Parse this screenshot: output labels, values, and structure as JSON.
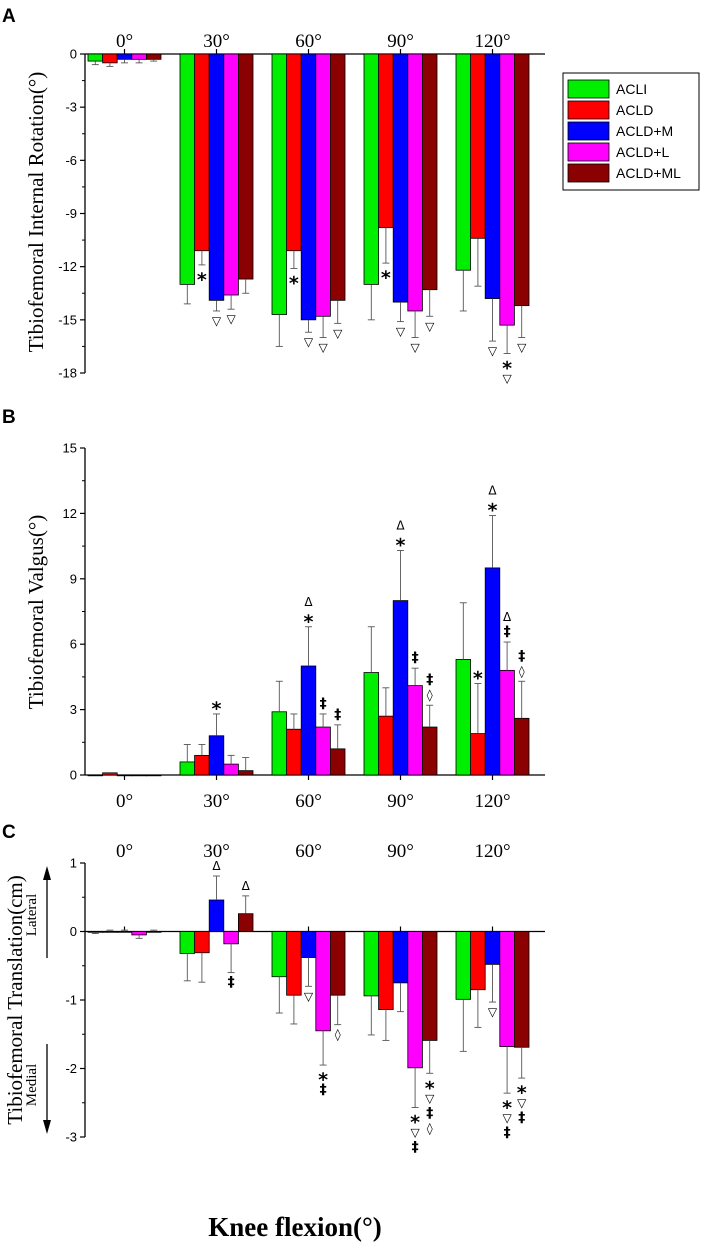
{
  "figure": {
    "x_axis_label": "Knee flexion(°)",
    "legend": [
      "ACLI",
      "ACLD",
      "ACLD+M",
      "ACLD+L",
      "ACLD+ML"
    ],
    "colors": [
      "#00ee00",
      "#ff0000",
      "#0000ff",
      "#ff00ff",
      "#8b0000"
    ]
  },
  "chart_data": [
    {
      "type": "bar",
      "panel": "A",
      "title": "",
      "ylabel": "Tibiofemoral Internal Rotation(°)",
      "xlabel": "Knee flexion(°)",
      "categories": [
        "0°",
        "30°",
        "60°",
        "90°",
        "120°"
      ],
      "category_label_position": "top",
      "ylim": [
        -18,
        0
      ],
      "yticks": [
        -18,
        -15,
        -12,
        -9,
        -6,
        -3,
        0
      ],
      "legend_position": "right",
      "series": [
        {
          "name": "ACLI",
          "color": "#00ee00",
          "values": [
            -0.4,
            -13.0,
            -14.7,
            -13.0,
            -12.2
          ],
          "errors": [
            0.2,
            1.1,
            1.8,
            2.0,
            2.3
          ]
        },
        {
          "name": "ACLD",
          "color": "#ff0000",
          "values": [
            -0.5,
            -11.1,
            -11.1,
            -9.8,
            -10.4
          ],
          "errors": [
            0.2,
            0.8,
            1.0,
            2.0,
            2.7
          ]
        },
        {
          "name": "ACLD+M",
          "color": "#0000ff",
          "values": [
            -0.3,
            -13.9,
            -15.0,
            -14.0,
            -13.8
          ],
          "errors": [
            0.2,
            0.6,
            0.7,
            1.1,
            2.4
          ]
        },
        {
          "name": "ACLD+L",
          "color": "#ff00ff",
          "values": [
            -0.3,
            -13.6,
            -14.8,
            -14.5,
            -15.3
          ],
          "errors": [
            0.2,
            0.8,
            1.2,
            1.5,
            1.6
          ]
        },
        {
          "name": "ACLD+ML",
          "color": "#8b0000",
          "values": [
            -0.3,
            -12.7,
            -13.9,
            -13.3,
            -14.2
          ],
          "errors": [
            0.1,
            0.8,
            1.3,
            1.5,
            1.8
          ]
        }
      ],
      "annotations": [
        {
          "category": 1,
          "series": 1,
          "text": "*"
        },
        {
          "category": 1,
          "series": 2,
          "text": "▽"
        },
        {
          "category": 1,
          "series": 3,
          "text": "▽"
        },
        {
          "category": 2,
          "series": 1,
          "text": "*"
        },
        {
          "category": 2,
          "series": 2,
          "text": "▽"
        },
        {
          "category": 2,
          "series": 3,
          "text": "▽"
        },
        {
          "category": 2,
          "series": 4,
          "text": "▽"
        },
        {
          "category": 3,
          "series": 1,
          "text": "*"
        },
        {
          "category": 3,
          "series": 2,
          "text": "▽"
        },
        {
          "category": 3,
          "series": 3,
          "text": "▽"
        },
        {
          "category": 3,
          "series": 4,
          "text": "▽"
        },
        {
          "category": 4,
          "series": 2,
          "text": "▽"
        },
        {
          "category": 4,
          "series": 3,
          "text": "*"
        },
        {
          "category": 4,
          "series": 3,
          "text": "▽"
        },
        {
          "category": 4,
          "series": 4,
          "text": "▽"
        }
      ]
    },
    {
      "type": "bar",
      "panel": "B",
      "title": "",
      "ylabel": "Tibiofemoral Valgus(°)",
      "xlabel": "Knee flexion(°)",
      "categories": [
        "0°",
        "30°",
        "60°",
        "90°",
        "120°"
      ],
      "category_label_position": "bottom",
      "ylim": [
        0,
        15
      ],
      "yticks": [
        0,
        3,
        6,
        9,
        12,
        15
      ],
      "series": [
        {
          "name": "ACLI",
          "color": "#00ee00",
          "values": [
            0.0,
            0.6,
            2.9,
            4.7,
            5.3
          ],
          "errors": [
            0.0,
            0.8,
            1.4,
            2.1,
            2.6
          ]
        },
        {
          "name": "ACLD",
          "color": "#ff0000",
          "values": [
            0.1,
            0.9,
            2.1,
            2.7,
            1.9
          ],
          "errors": [
            0.0,
            0.5,
            0.7,
            1.3,
            2.3
          ]
        },
        {
          "name": "ACLD+M",
          "color": "#0000ff",
          "values": [
            0.0,
            1.8,
            5.0,
            8.0,
            9.5
          ],
          "errors": [
            0.0,
            1.0,
            1.8,
            2.3,
            2.4
          ]
        },
        {
          "name": "ACLD+L",
          "color": "#ff00ff",
          "values": [
            0.0,
            0.5,
            2.2,
            4.1,
            4.8
          ],
          "errors": [
            0.0,
            0.4,
            0.6,
            0.8,
            1.3
          ]
        },
        {
          "name": "ACLD+ML",
          "color": "#8b0000",
          "values": [
            0.0,
            0.2,
            1.2,
            2.2,
            2.6
          ],
          "errors": [
            0.0,
            0.6,
            1.1,
            1.0,
            1.7
          ]
        }
      ],
      "annotations": [
        {
          "category": 1,
          "series": 2,
          "text": "*"
        },
        {
          "category": 2,
          "series": 2,
          "text": "*"
        },
        {
          "category": 2,
          "series": 2,
          "text": "Δ"
        },
        {
          "category": 2,
          "series": 3,
          "text": "‡"
        },
        {
          "category": 2,
          "series": 4,
          "text": "‡"
        },
        {
          "category": 3,
          "series": 2,
          "text": "*"
        },
        {
          "category": 3,
          "series": 2,
          "text": "Δ"
        },
        {
          "category": 3,
          "series": 3,
          "text": "‡"
        },
        {
          "category": 3,
          "series": 4,
          "text": "◊"
        },
        {
          "category": 3,
          "series": 4,
          "text": "‡"
        },
        {
          "category": 4,
          "series": 1,
          "text": "*"
        },
        {
          "category": 4,
          "series": 2,
          "text": "*"
        },
        {
          "category": 4,
          "series": 2,
          "text": "Δ"
        },
        {
          "category": 4,
          "series": 3,
          "text": "‡"
        },
        {
          "category": 4,
          "series": 3,
          "text": "Δ"
        },
        {
          "category": 4,
          "series": 4,
          "text": "◊"
        },
        {
          "category": 4,
          "series": 4,
          "text": "‡"
        }
      ]
    },
    {
      "type": "bar",
      "panel": "C",
      "title": "",
      "ylabel": "Tibiofemoral Translation(cm)",
      "direction_labels": {
        "positive": "Lateral",
        "negative": "Medial"
      },
      "xlabel": "Knee flexion(°)",
      "categories": [
        "0°",
        "30°",
        "60°",
        "90°",
        "120°"
      ],
      "category_label_position": "top",
      "ylim": [
        -3,
        1
      ],
      "yticks": [
        -3,
        -2,
        -1,
        0,
        1
      ],
      "series": [
        {
          "name": "ACLI",
          "color": "#00ee00",
          "values": [
            -0.01,
            -0.32,
            -0.66,
            -0.94,
            -0.99
          ],
          "errors": [
            0.02,
            0.4,
            0.53,
            0.57,
            0.76
          ]
        },
        {
          "name": "ACLD",
          "color": "#ff0000",
          "values": [
            0.0,
            -0.31,
            -0.93,
            -1.14,
            -0.85
          ],
          "errors": [
            0.02,
            0.43,
            0.42,
            0.45,
            0.55
          ]
        },
        {
          "name": "ACLD+M",
          "color": "#0000ff",
          "values": [
            0.0,
            0.46,
            -0.38,
            -0.75,
            -0.48
          ],
          "errors": [
            0.02,
            0.35,
            0.42,
            0.42,
            0.55
          ]
        },
        {
          "name": "ACLD+L",
          "color": "#ff00ff",
          "values": [
            -0.05,
            -0.18,
            -1.45,
            -1.99,
            -1.68
          ],
          "errors": [
            0.05,
            0.42,
            0.5,
            0.58,
            0.68
          ]
        },
        {
          "name": "ACLD+ML",
          "color": "#8b0000",
          "values": [
            0.0,
            0.26,
            -0.93,
            -1.59,
            -1.69
          ],
          "errors": [
            0.02,
            0.26,
            0.43,
            0.48,
            0.45
          ]
        }
      ],
      "annotations": [
        {
          "category": 1,
          "series": 2,
          "text": "Δ"
        },
        {
          "category": 1,
          "series": 4,
          "text": "Δ"
        },
        {
          "category": 1,
          "series": 3,
          "text": "‡"
        },
        {
          "category": 2,
          "series": 2,
          "text": "▽"
        },
        {
          "category": 2,
          "series": 3,
          "text": "*"
        },
        {
          "category": 2,
          "series": 3,
          "text": "‡"
        },
        {
          "category": 2,
          "series": 4,
          "text": "◊"
        },
        {
          "category": 3,
          "series": 3,
          "text": "*"
        },
        {
          "category": 3,
          "series": 3,
          "text": "▽"
        },
        {
          "category": 3,
          "series": 3,
          "text": "‡"
        },
        {
          "category": 3,
          "series": 4,
          "text": "*"
        },
        {
          "category": 3,
          "series": 4,
          "text": "▽"
        },
        {
          "category": 3,
          "series": 4,
          "text": "‡"
        },
        {
          "category": 3,
          "series": 4,
          "text": "◊"
        },
        {
          "category": 4,
          "series": 2,
          "text": "▽"
        },
        {
          "category": 4,
          "series": 3,
          "text": "*"
        },
        {
          "category": 4,
          "series": 3,
          "text": "▽"
        },
        {
          "category": 4,
          "series": 3,
          "text": "‡"
        },
        {
          "category": 4,
          "series": 4,
          "text": "*"
        },
        {
          "category": 4,
          "series": 4,
          "text": "▽"
        },
        {
          "category": 4,
          "series": 4,
          "text": "‡"
        }
      ]
    }
  ]
}
